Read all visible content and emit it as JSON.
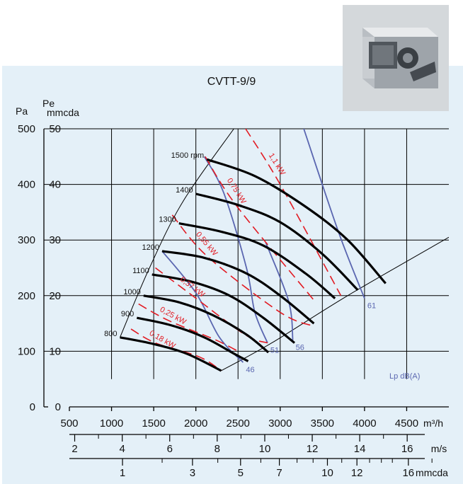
{
  "chart_data": {
    "type": "line",
    "title": "CVTT-9/9",
    "x_axis": {
      "label": "m³/h",
      "range": [
        500,
        5000
      ],
      "ticks": [
        500,
        1000,
        1500,
        2000,
        2500,
        3000,
        3500,
        4000,
        4500
      ]
    },
    "y_axis_left": {
      "label": "Pa",
      "range": [
        0,
        500
      ],
      "ticks": [
        0,
        100,
        200,
        300,
        400,
        500
      ]
    },
    "y_axis_right": {
      "label": "Pe mmcda",
      "label_top": "Pe",
      "label_bottom": "mmcda",
      "ticks": [
        0,
        10,
        20,
        30,
        40,
        50
      ]
    },
    "velocity_scale": {
      "unit": "m/s",
      "labels": [
        {
          "text": "2",
          "x": 563
        },
        {
          "text": "4",
          "x": 1127
        },
        {
          "text": "6",
          "x": 1690
        },
        {
          "text": "8",
          "x": 2253
        },
        {
          "text": "10",
          "x": 2817
        },
        {
          "text": "12",
          "x": 3380
        },
        {
          "text": "14",
          "x": 3943
        },
        {
          "text": "16",
          "x": 4506
        }
      ],
      "minor": [
        845,
        1408,
        1972,
        2535,
        3098,
        3662,
        4225
      ]
    },
    "dynamic_pressure_scale": {
      "unit": "mmcda",
      "labels": [
        {
          "text": "1",
          "x": 1130
        },
        {
          "text": "3",
          "x": 1960
        },
        {
          "text": "5",
          "x": 2530
        },
        {
          "text": "7",
          "x": 2990
        },
        {
          "text": "10",
          "x": 3560
        },
        {
          "text": "12",
          "x": 3910
        },
        {
          "text": "16",
          "x": 4520
        }
      ],
      "minor": [
        1600,
        2260,
        2770,
        3200,
        3390,
        3730,
        4060,
        4200,
        4330,
        4800
      ]
    },
    "speed_curves": {
      "unit": "rpm",
      "series": [
        {
          "name": "1500 rpm",
          "points": [
            [
              2130,
              445
            ],
            [
              2700,
              415
            ],
            [
              3300,
              360
            ],
            [
              3800,
              300
            ],
            [
              4250,
              222
            ]
          ]
        },
        {
          "name": "1400",
          "points": [
            [
              2000,
              383
            ],
            [
              2500,
              363
            ],
            [
              3000,
              332
            ],
            [
              3500,
              275
            ],
            [
              3920,
              210
            ]
          ]
        },
        {
          "name": "1300",
          "points": [
            [
              1800,
              330
            ],
            [
              2300,
              315
            ],
            [
              2800,
              290
            ],
            [
              3300,
              240
            ],
            [
              3650,
              195
            ]
          ]
        },
        {
          "name": "1200",
          "points": [
            [
              1600,
              280
            ],
            [
              2100,
              268
            ],
            [
              2600,
              240
            ],
            [
              3000,
              200
            ],
            [
              3400,
              150
            ]
          ]
        },
        {
          "name": "1100",
          "points": [
            [
              1480,
              238
            ],
            [
              1950,
              225
            ],
            [
              2400,
              200
            ],
            [
              2800,
              160
            ],
            [
              3170,
              115
            ]
          ]
        },
        {
          "name": "1000",
          "points": [
            [
              1380,
              200
            ],
            [
              1800,
              188
            ],
            [
              2200,
              165
            ],
            [
              2600,
              130
            ],
            [
              2860,
              98
            ]
          ]
        },
        {
          "name": "900",
          "points": [
            [
              1300,
              160
            ],
            [
              1700,
              147
            ],
            [
              2100,
              125
            ],
            [
              2460,
              95
            ],
            [
              2620,
              82
            ]
          ]
        },
        {
          "name": "800",
          "points": [
            [
              1100,
              125
            ],
            [
              1500,
              113
            ],
            [
              1900,
              95
            ],
            [
              2300,
              65
            ]
          ]
        }
      ]
    },
    "power_lines": {
      "unit": "kW",
      "series": [
        {
          "name": "1,1 kW",
          "points": [
            [
              2590,
              500
            ],
            [
              3000,
              400
            ],
            [
              3720,
              200
            ]
          ]
        },
        {
          "name": "0,75 kW",
          "points": [
            [
              2110,
              450
            ],
            [
              2490,
              360
            ],
            [
              3410,
              190
            ]
          ]
        },
        {
          "name": "0,55 kW",
          "points": [
            [
              1720,
              345
            ],
            [
              2140,
              270
            ],
            [
              3000,
              170
            ],
            [
              3400,
              145
            ]
          ]
        },
        {
          "name": "0,37 kW",
          "points": [
            [
              1520,
              250
            ],
            [
              1960,
              200
            ],
            [
              2580,
              130
            ],
            [
              2850,
              115
            ]
          ]
        },
        {
          "name": "0,25 kW",
          "points": [
            [
              1320,
              185
            ],
            [
              1680,
              155
            ],
            [
              2240,
              120
            ],
            [
              2500,
              100
            ]
          ]
        },
        {
          "name": "0,18 kW",
          "points": [
            [
              1230,
              140
            ],
            [
              1520,
              115
            ],
            [
              2040,
              90
            ],
            [
              2300,
              65
            ]
          ]
        }
      ]
    },
    "noise_lines": {
      "unit": "Lp dB(A)",
      "series": [
        {
          "name": "61",
          "points": [
            [
              3280,
              500
            ],
            [
              3690,
              315
            ],
            [
              4000,
              195
            ]
          ]
        },
        {
          "name": "56",
          "points": [
            [
              2830,
              295
            ],
            [
              3100,
              190
            ],
            [
              3150,
              120
            ]
          ]
        },
        {
          "name": "51",
          "points": [
            [
              2100,
              450
            ],
            [
              2330,
              385
            ],
            [
              2600,
              250
            ],
            [
              2700,
              170
            ],
            [
              2850,
              115
            ]
          ]
        },
        {
          "name": "46",
          "points": [
            [
              1600,
              280
            ],
            [
              2000,
              205
            ],
            [
              2280,
              125
            ],
            [
              2560,
              80
            ]
          ]
        }
      ]
    },
    "boundary_lines": [
      {
        "name": "left-boundary",
        "points": [
          [
            1100,
            125
          ],
          [
            1450,
            250
          ],
          [
            1850,
            370
          ],
          [
            2450,
            500
          ]
        ]
      },
      {
        "name": "right-boundary",
        "points": [
          [
            2300,
            65
          ],
          [
            2900,
            115
          ],
          [
            3800,
            200
          ],
          [
            5000,
            305
          ]
        ]
      }
    ],
    "legend": "none",
    "grid": true,
    "colors": {
      "speed": "#000000",
      "power": "#e21b23",
      "noise": "#5a66b0",
      "panel": "#e4f0f8"
    }
  }
}
